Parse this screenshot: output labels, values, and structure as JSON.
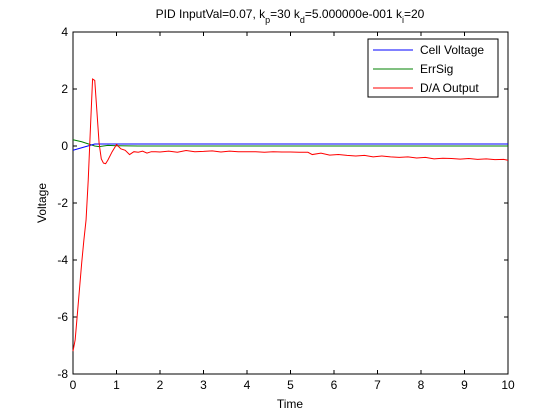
{
  "chart_data": {
    "type": "line",
    "title": {
      "prefix": "PID InputVal=0.07, k",
      "p_sub": "p",
      "p_val": "=30 k",
      "d_sub": "d",
      "d_val": "=5.000000e-001 k",
      "i_sub": "i",
      "i_val": "=20"
    },
    "xlabel": "Time",
    "ylabel": "Voltage",
    "xlim": [
      0,
      10
    ],
    "ylim": [
      -8,
      4
    ],
    "xticks": [
      0,
      1,
      2,
      3,
      4,
      5,
      6,
      7,
      8,
      9,
      10
    ],
    "yticks": [
      -8,
      -6,
      -4,
      -2,
      0,
      2,
      4
    ],
    "legend_position": "top-right",
    "grid": false,
    "series": [
      {
        "name": "Cell Voltage",
        "color": "#0000ff",
        "x": [
          0,
          0.5,
          0.6,
          1,
          2,
          3,
          4,
          5,
          6,
          7,
          8,
          9,
          10
        ],
        "y": [
          -0.15,
          0.07,
          0.07,
          0.07,
          0.07,
          0.07,
          0.07,
          0.07,
          0.07,
          0.07,
          0.07,
          0.07,
          0.07
        ]
      },
      {
        "name": "ErrSig",
        "color": "#008000",
        "x": [
          0,
          0.2,
          0.5,
          0.6,
          0.8,
          1,
          1.5,
          2,
          3,
          4,
          6,
          8,
          10
        ],
        "y": [
          0.22,
          0.15,
          0,
          -0.02,
          0.02,
          0.01,
          0,
          0,
          0,
          0,
          0,
          0,
          0
        ]
      },
      {
        "name": "D/A Output",
        "color": "#ff0000",
        "x": [
          0,
          0.05,
          0.1,
          0.15,
          0.2,
          0.25,
          0.3,
          0.35,
          0.4,
          0.45,
          0.5,
          0.55,
          0.6,
          0.65,
          0.7,
          0.75,
          0.8,
          0.9,
          1.0,
          1.1,
          1.2,
          1.3,
          1.4,
          1.5,
          1.6,
          1.7,
          1.8,
          1.9,
          2.0,
          2.2,
          2.4,
          2.6,
          2.8,
          3.0,
          3.2,
          3.4,
          3.6,
          3.8,
          4.0,
          4.2,
          4.4,
          4.6,
          4.8,
          5.0,
          5.2,
          5.4,
          5.5,
          5.7,
          5.9,
          6.1,
          6.3,
          6.5,
          6.7,
          6.9,
          7.1,
          7.3,
          7.5,
          7.7,
          7.9,
          8.1,
          8.3,
          8.5,
          8.7,
          8.9,
          9.1,
          9.3,
          9.5,
          9.7,
          9.9,
          10.0
        ],
        "y": [
          -7.2,
          -6.8,
          -5.9,
          -5.0,
          -4.1,
          -3.3,
          -2.6,
          -1.2,
          0.6,
          2.35,
          2.3,
          1.2,
          0.1,
          -0.45,
          -0.6,
          -0.62,
          -0.5,
          -0.2,
          0.05,
          -0.1,
          -0.15,
          -0.3,
          -0.2,
          -0.22,
          -0.18,
          -0.25,
          -0.2,
          -0.2,
          -0.21,
          -0.18,
          -0.22,
          -0.16,
          -0.2,
          -0.19,
          -0.17,
          -0.21,
          -0.18,
          -0.2,
          -0.2,
          -0.2,
          -0.22,
          -0.2,
          -0.21,
          -0.21,
          -0.22,
          -0.22,
          -0.3,
          -0.25,
          -0.32,
          -0.3,
          -0.33,
          -0.35,
          -0.33,
          -0.38,
          -0.35,
          -0.38,
          -0.4,
          -0.38,
          -0.42,
          -0.4,
          -0.45,
          -0.43,
          -0.44,
          -0.46,
          -0.44,
          -0.47,
          -0.45,
          -0.48,
          -0.47,
          -0.5
        ]
      }
    ]
  }
}
